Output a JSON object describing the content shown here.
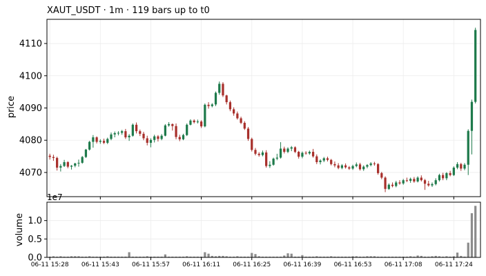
{
  "chart_data": {
    "type": "candlestick",
    "title": "XAUT_USDT  ·  1m  ·  119 bars up to t0",
    "price_panel": {
      "ylabel": "price",
      "ylim": [
        4062.5,
        4117.5
      ],
      "yticks": [
        4070,
        4080,
        4090,
        4100,
        4110
      ],
      "grid": true
    },
    "volume_panel": {
      "ylabel": "volume",
      "multiplier_label": "1e7",
      "ylim": [
        0,
        1.5
      ],
      "yticks": [
        0.0,
        0.5,
        1.0
      ],
      "ytick_labels": [
        "0.0",
        "0.5",
        "1.0"
      ],
      "grid": true
    },
    "x_tick_labels": [
      "06-11 15:28",
      "06-11 15:43",
      "06-11 15:57",
      "06-11 16:11",
      "06-11 16:25",
      "06-11 16:39",
      "06-11 16:53",
      "06-11 17:08",
      "06-11 17:24"
    ],
    "x_tick_index": [
      0,
      14,
      28,
      42,
      56,
      70,
      84,
      98,
      112
    ],
    "up_color": "#1e7a4b",
    "down_color": "#a8302c",
    "volume_color": "#8c8c8c",
    "ohlc": [
      [
        4075.2,
        4075.8,
        4074.0,
        4074.8
      ],
      [
        4074.8,
        4075.5,
        4073.6,
        4074.5
      ],
      [
        4074.5,
        4074.9,
        4070.6,
        4071.5
      ],
      [
        4071.5,
        4072.6,
        4070.3,
        4072.0
      ],
      [
        4072.0,
        4073.9,
        4071.7,
        4073.2
      ],
      [
        4073.2,
        4073.5,
        4071.3,
        4071.8
      ],
      [
        4071.8,
        4072.3,
        4070.9,
        4072.1
      ],
      [
        4072.1,
        4073.0,
        4071.6,
        4072.8
      ],
      [
        4072.8,
        4074.0,
        4071.8,
        4073.0
      ],
      [
        4073.0,
        4075.1,
        4072.7,
        4074.8
      ],
      [
        4074.8,
        4077.3,
        4074.5,
        4077.1
      ],
      [
        4077.1,
        4079.8,
        4076.8,
        4079.5
      ],
      [
        4079.5,
        4081.6,
        4077.7,
        4080.9
      ],
      [
        4080.9,
        4081.2,
        4079.0,
        4079.5
      ],
      [
        4079.5,
        4080.3,
        4078.9,
        4079.8
      ],
      [
        4079.8,
        4080.5,
        4078.8,
        4079.2
      ],
      [
        4079.2,
        4080.8,
        4078.8,
        4080.4
      ],
      [
        4080.4,
        4082.4,
        4080.0,
        4081.8
      ],
      [
        4081.8,
        4082.7,
        4080.9,
        4082.2
      ],
      [
        4082.2,
        4082.8,
        4081.5,
        4082.3
      ],
      [
        4082.3,
        4083.2,
        4081.7,
        4082.8
      ],
      [
        4082.8,
        4083.5,
        4080.4,
        4080.9
      ],
      [
        4080.9,
        4081.9,
        4079.8,
        4081.4
      ],
      [
        4081.4,
        4085.2,
        4081.1,
        4084.8
      ],
      [
        4084.8,
        4085.5,
        4082.1,
        4082.8
      ],
      [
        4082.8,
        4083.3,
        4081.3,
        4082.0
      ],
      [
        4082.0,
        4082.6,
        4080.0,
        4080.6
      ],
      [
        4080.6,
        4081.4,
        4078.4,
        4079.2
      ],
      [
        4079.2,
        4080.6,
        4077.8,
        4080.1
      ],
      [
        4080.1,
        4081.7,
        4079.3,
        4081.2
      ],
      [
        4081.2,
        4081.6,
        4079.6,
        4080.4
      ],
      [
        4080.4,
        4081.9,
        4080.0,
        4081.4
      ],
      [
        4081.4,
        4085.0,
        4081.2,
        4084.6
      ],
      [
        4084.6,
        4085.6,
        4084.2,
        4085.0
      ],
      [
        4085.0,
        4085.2,
        4083.0,
        4084.4
      ],
      [
        4084.4,
        4085.2,
        4080.3,
        4081.0
      ],
      [
        4081.0,
        4081.7,
        4079.7,
        4080.3
      ],
      [
        4080.3,
        4082.0,
        4080.0,
        4081.6
      ],
      [
        4081.6,
        4085.2,
        4081.3,
        4084.8
      ],
      [
        4084.8,
        4086.5,
        4084.6,
        4086.1
      ],
      [
        4086.1,
        4086.5,
        4085.2,
        4085.6
      ],
      [
        4085.6,
        4086.4,
        4085.2,
        4085.8
      ],
      [
        4085.8,
        4086.2,
        4083.8,
        4084.3
      ],
      [
        4084.3,
        4091.4,
        4084.0,
        4091.0
      ],
      [
        4091.0,
        4091.8,
        4089.8,
        4090.6
      ],
      [
        4090.6,
        4091.5,
        4090.2,
        4091.1
      ],
      [
        4091.1,
        4095.1,
        4090.6,
        4094.7
      ],
      [
        4094.7,
        4098.2,
        4094.1,
        4097.5
      ],
      [
        4097.5,
        4098.0,
        4093.4,
        4093.9
      ],
      [
        4093.9,
        4094.1,
        4091.1,
        4091.8
      ],
      [
        4091.8,
        4092.3,
        4089.0,
        4089.6
      ],
      [
        4089.6,
        4090.2,
        4087.6,
        4088.3
      ],
      [
        4088.3,
        4088.9,
        4086.4,
        4086.8
      ],
      [
        4086.8,
        4087.3,
        4085.0,
        4085.4
      ],
      [
        4085.4,
        4085.9,
        4083.2,
        4083.6
      ],
      [
        4083.6,
        4084.1,
        4079.8,
        4080.4
      ],
      [
        4080.4,
        4080.8,
        4076.5,
        4077.0
      ],
      [
        4077.0,
        4077.6,
        4075.3,
        4075.8
      ],
      [
        4075.8,
        4076.3,
        4074.9,
        4075.4
      ],
      [
        4075.4,
        4076.8,
        4075.0,
        4076.2
      ],
      [
        4076.2,
        4076.9,
        4071.5,
        4072.0
      ],
      [
        4072.0,
        4073.5,
        4071.4,
        4072.4
      ],
      [
        4072.4,
        4074.6,
        4072.1,
        4074.3
      ],
      [
        4074.3,
        4075.8,
        4073.8,
        4074.6
      ],
      [
        4074.6,
        4079.4,
        4074.3,
        4077.4
      ],
      [
        4077.4,
        4078.0,
        4075.9,
        4076.4
      ],
      [
        4076.4,
        4077.8,
        4076.0,
        4077.4
      ],
      [
        4077.4,
        4078.2,
        4076.6,
        4077.8
      ],
      [
        4077.8,
        4078.1,
        4076.0,
        4076.4
      ],
      [
        4076.4,
        4076.7,
        4074.3,
        4074.9
      ],
      [
        4074.9,
        4076.5,
        4074.4,
        4076.1
      ],
      [
        4076.1,
        4076.6,
        4075.5,
        4075.9
      ],
      [
        4075.9,
        4076.8,
        4075.5,
        4076.4
      ],
      [
        4076.4,
        4077.3,
        4074.6,
        4075.0
      ],
      [
        4075.0,
        4075.6,
        4072.6,
        4073.2
      ],
      [
        4073.2,
        4074.1,
        4072.5,
        4073.7
      ],
      [
        4073.7,
        4074.8,
        4073.2,
        4074.4
      ],
      [
        4074.4,
        4074.9,
        4073.4,
        4073.9
      ],
      [
        4073.9,
        4074.2,
        4072.2,
        4072.6
      ],
      [
        4072.6,
        4073.4,
        4071.6,
        4072.2
      ],
      [
        4072.2,
        4072.9,
        4071.0,
        4071.4
      ],
      [
        4071.4,
        4072.6,
        4071.0,
        4072.2
      ],
      [
        4072.2,
        4072.8,
        4071.2,
        4071.6
      ],
      [
        4071.6,
        4072.0,
        4070.8,
        4071.2
      ],
      [
        4071.2,
        4072.4,
        4070.8,
        4072.0
      ],
      [
        4072.0,
        4073.1,
        4071.6,
        4072.5
      ],
      [
        4072.5,
        4073.0,
        4070.6,
        4071.0
      ],
      [
        4071.0,
        4072.2,
        4070.5,
        4071.8
      ],
      [
        4071.8,
        4072.6,
        4071.3,
        4072.3
      ],
      [
        4072.3,
        4073.2,
        4071.9,
        4072.8
      ],
      [
        4072.8,
        4073.3,
        4072.1,
        4072.6
      ],
      [
        4072.6,
        4072.9,
        4069.3,
        4069.8
      ],
      [
        4069.8,
        4070.2,
        4067.9,
        4068.4
      ],
      [
        4068.4,
        4068.8,
        4063.9,
        4064.9
      ],
      [
        4064.9,
        4066.6,
        4064.6,
        4066.2
      ],
      [
        4066.2,
        4066.9,
        4065.4,
        4065.8
      ],
      [
        4065.8,
        4067.4,
        4065.4,
        4066.9
      ],
      [
        4066.9,
        4067.6,
        4066.2,
        4066.6
      ],
      [
        4066.6,
        4068.0,
        4066.2,
        4067.6
      ],
      [
        4067.6,
        4068.4,
        4067.0,
        4067.4
      ],
      [
        4067.4,
        4068.4,
        4066.8,
        4068.0
      ],
      [
        4068.0,
        4068.6,
        4066.8,
        4067.2
      ],
      [
        4067.2,
        4068.8,
        4066.9,
        4068.4
      ],
      [
        4068.4,
        4069.1,
        4067.2,
        4067.6
      ],
      [
        4067.6,
        4068.0,
        4064.6,
        4066.5
      ],
      [
        4066.5,
        4067.4,
        4065.6,
        4066.0
      ],
      [
        4066.0,
        4066.9,
        4065.5,
        4066.4
      ],
      [
        4066.4,
        4068.2,
        4066.0,
        4067.6
      ],
      [
        4067.6,
        4069.6,
        4067.2,
        4069.2
      ],
      [
        4069.2,
        4069.9,
        4067.6,
        4068.2
      ],
      [
        4068.2,
        4070.1,
        4067.6,
        4069.8
      ],
      [
        4069.8,
        4070.5,
        4068.8,
        4069.2
      ],
      [
        4069.2,
        4071.9,
        4068.9,
        4071.5
      ],
      [
        4071.5,
        4073.2,
        4071.0,
        4072.6
      ],
      [
        4072.6,
        4073.0,
        4070.5,
        4071.2
      ],
      [
        4071.2,
        4072.9,
        4070.7,
        4072.4
      ],
      [
        4072.4,
        4083.4,
        4069.2,
        4082.9
      ],
      [
        4082.9,
        4092.6,
        4075.6,
        4091.9
      ],
      [
        4091.9,
        4114.9,
        4091.4,
        4114.2
      ]
    ],
    "volume": [
      0.02,
      0.03,
      0.02,
      0.03,
      0.02,
      0.02,
      0.03,
      0.03,
      0.03,
      0.02,
      0.02,
      0.03,
      0.02,
      0.02,
      0.02,
      0.02,
      0.03,
      0.02,
      0.02,
      0.02,
      0.02,
      0.02,
      0.14,
      0.02,
      0.02,
      0.02,
      0.02,
      0.03,
      0.02,
      0.02,
      0.02,
      0.02,
      0.08,
      0.02,
      0.02,
      0.02,
      0.02,
      0.02,
      0.03,
      0.02,
      0.02,
      0.02,
      0.02,
      0.14,
      0.1,
      0.04,
      0.03,
      0.04,
      0.04,
      0.03,
      0.02,
      0.02,
      0.03,
      0.02,
      0.02,
      0.02,
      0.12,
      0.09,
      0.03,
      0.02,
      0.02,
      0.02,
      0.02,
      0.02,
      0.02,
      0.05,
      0.11,
      0.1,
      0.02,
      0.02,
      0.06,
      0.02,
      0.02,
      0.02,
      0.03,
      0.02,
      0.02,
      0.02,
      0.03,
      0.02,
      0.02,
      0.02,
      0.02,
      0.02,
      0.03,
      0.03,
      0.02,
      0.02,
      0.03,
      0.03,
      0.03,
      0.02,
      0.02,
      0.02,
      0.02,
      0.02,
      0.02,
      0.02,
      0.02,
      0.02,
      0.03,
      0.02,
      0.05,
      0.04,
      0.02,
      0.02,
      0.03,
      0.04,
      0.03,
      0.02,
      0.03,
      0.02,
      0.03,
      0.13,
      0.04,
      0.02,
      0.4,
      1.2,
      1.4
    ]
  }
}
